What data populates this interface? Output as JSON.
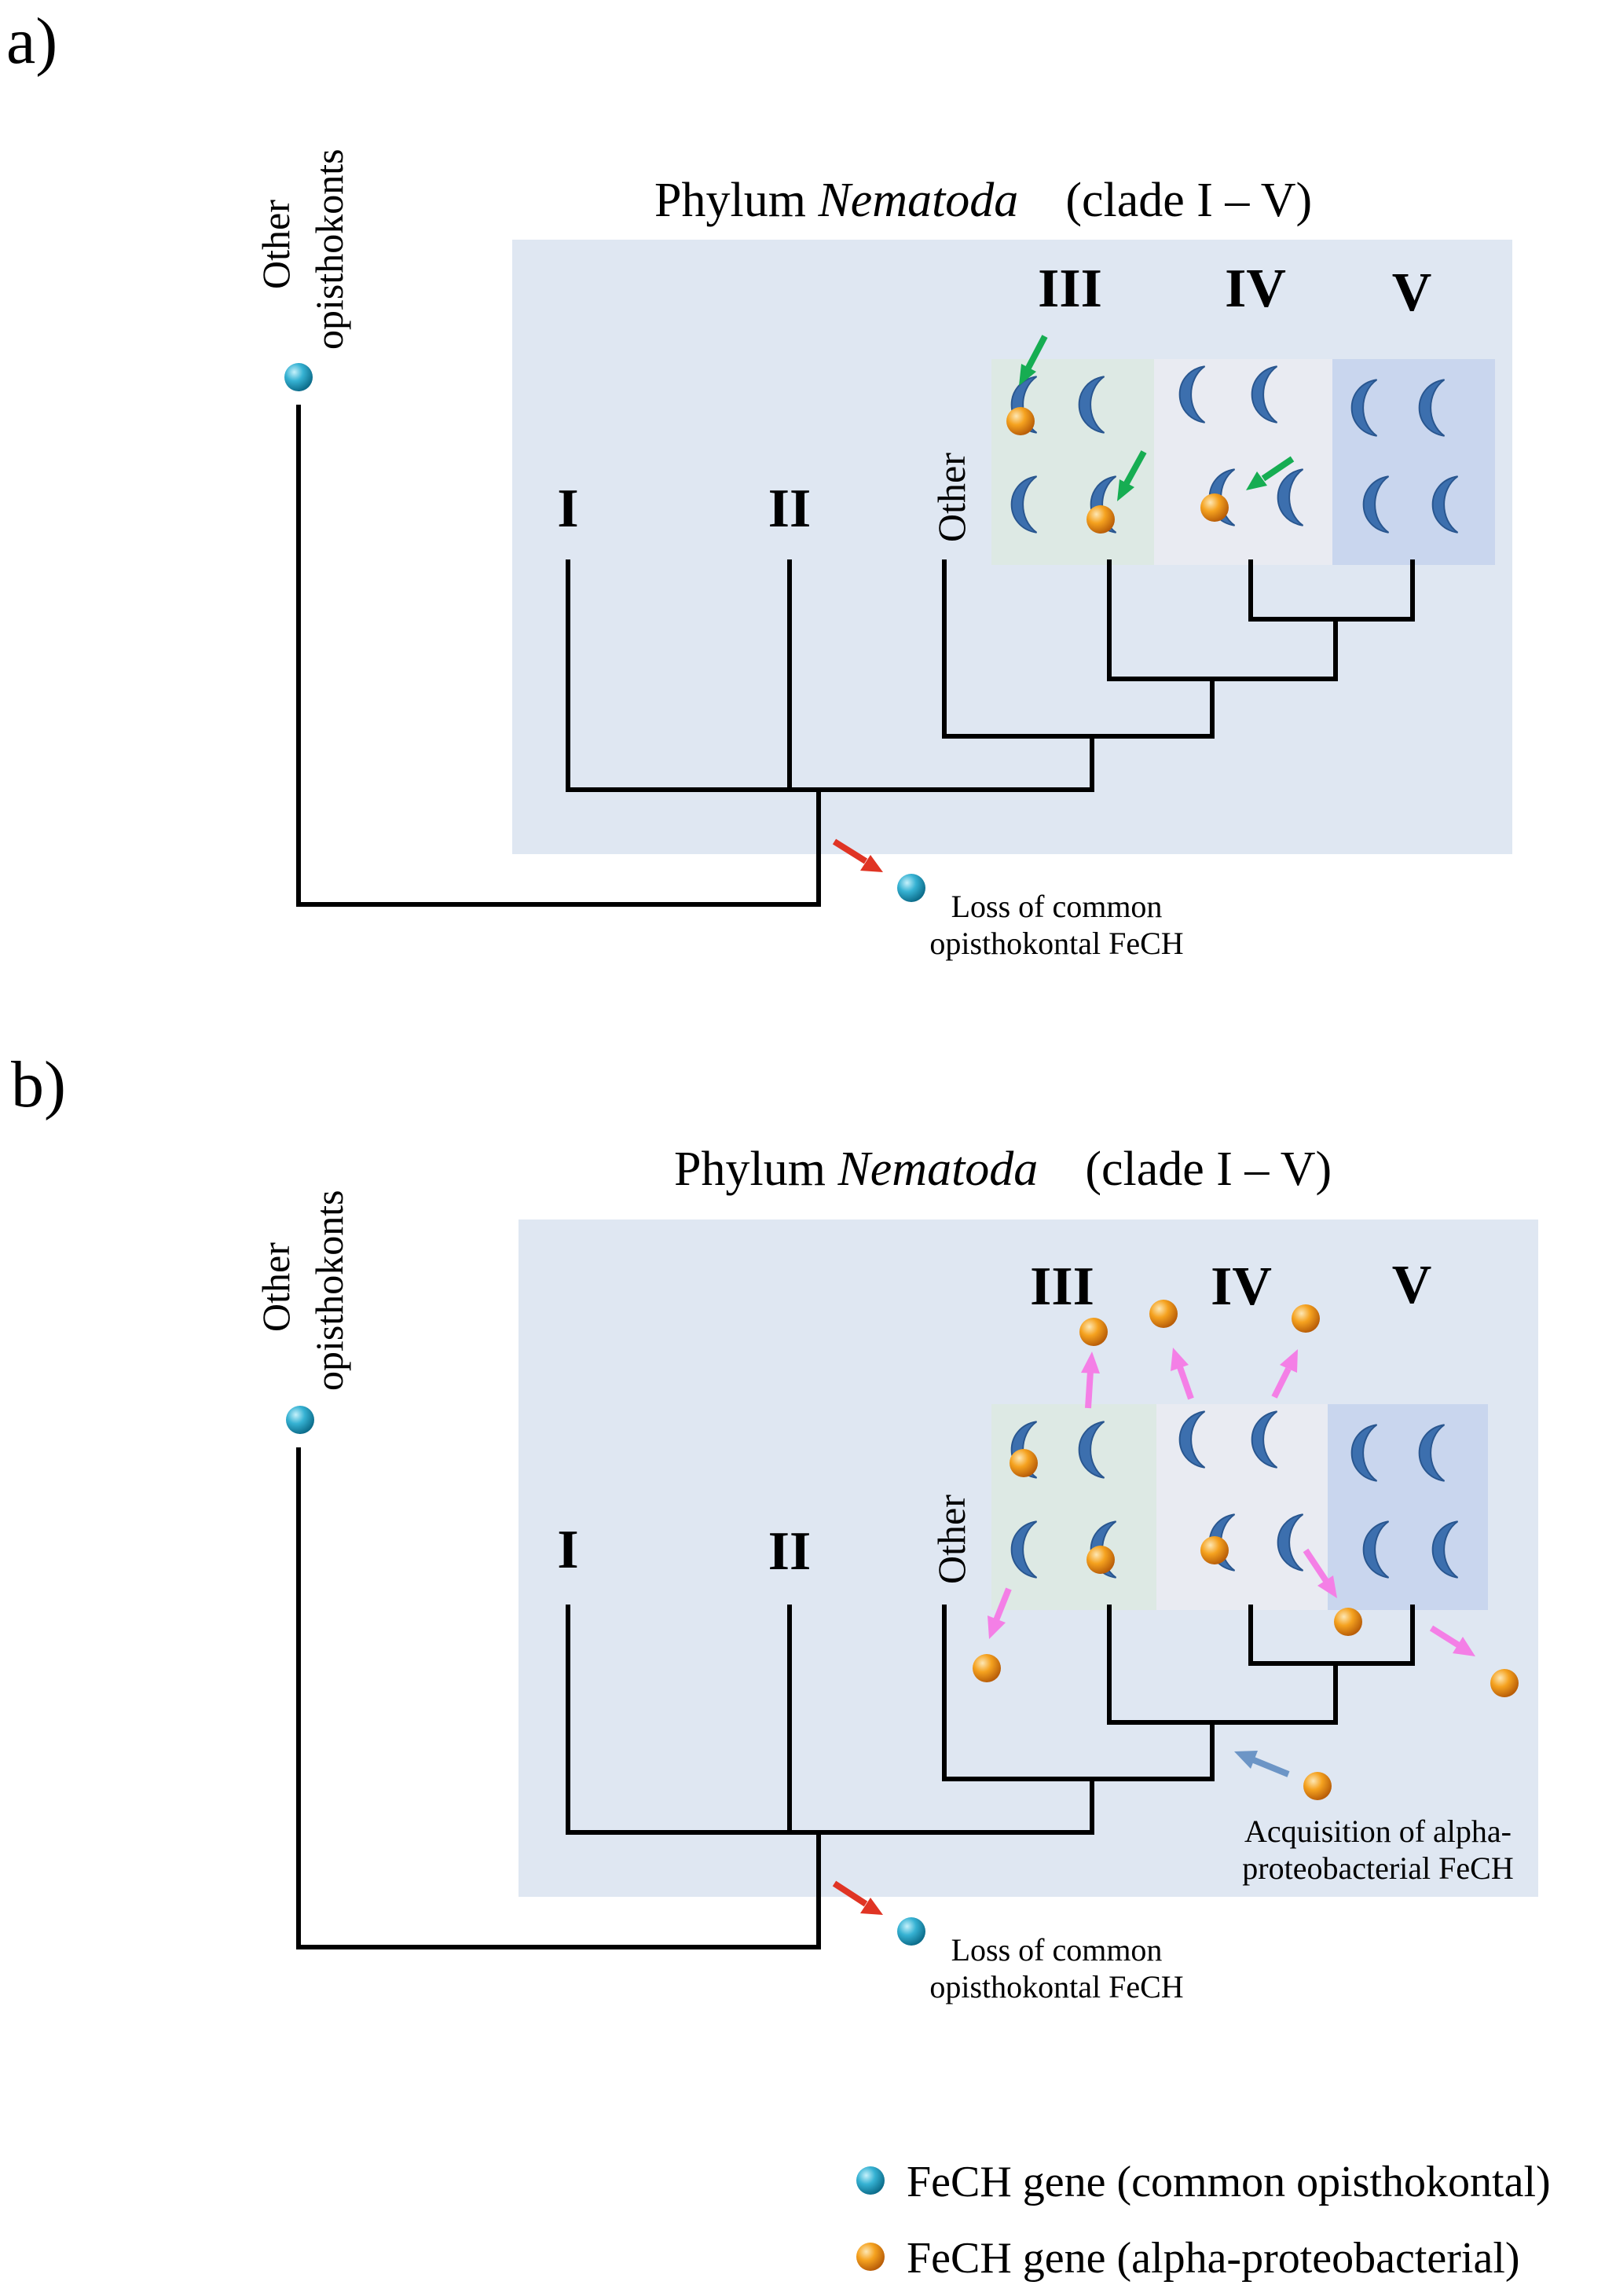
{
  "panel_a": {
    "panel_label": "a)",
    "title_prefix": "Phylum ",
    "title_italic": "Nematoda",
    "title_suffix": "(clade I – V)",
    "outgroup_line1": "Other",
    "outgroup_line2": "opisthokonts",
    "clade_labels": [
      "I",
      "II",
      "III",
      "IV",
      "V"
    ],
    "other_label": "Other",
    "loss_line1": "Loss of common",
    "loss_line2": "opisthokontal FeCH"
  },
  "panel_b": {
    "panel_label": "b)",
    "title_prefix": "Phylum ",
    "title_italic": "Nematoda",
    "title_suffix": "(clade I – V)",
    "outgroup_line1": "Other",
    "outgroup_line2": "opisthokonts",
    "clade_labels": [
      "I",
      "II",
      "III",
      "IV",
      "V"
    ],
    "other_label": "Other",
    "loss_line1": "Loss of common",
    "loss_line2": "opisthokontal FeCH",
    "acq_line1": "Acquisition of alpha-",
    "acq_line2": "proteobacterial FeCH"
  },
  "legend": {
    "opisthokontal": "FeCH gene (common opisthokontal)",
    "alpha": "FeCH gene (alpha-proteobacterial)"
  },
  "colors": {
    "nematoda_box": "#dfe7f2",
    "clade_III_box": "#dde9e4",
    "clade_IV_box": "#e9ebf2",
    "clade_V_box": "#c9d6ee",
    "crescent": "#3c6fae",
    "blue_gene": "#36b2d3",
    "orange_gene": "#f5a21f",
    "loss_arrow": "#e03424",
    "gain_arrow_green": "#16ad52",
    "gene_arrow_pink": "#f47fe6",
    "acq_arrow": "#6c95c6"
  }
}
